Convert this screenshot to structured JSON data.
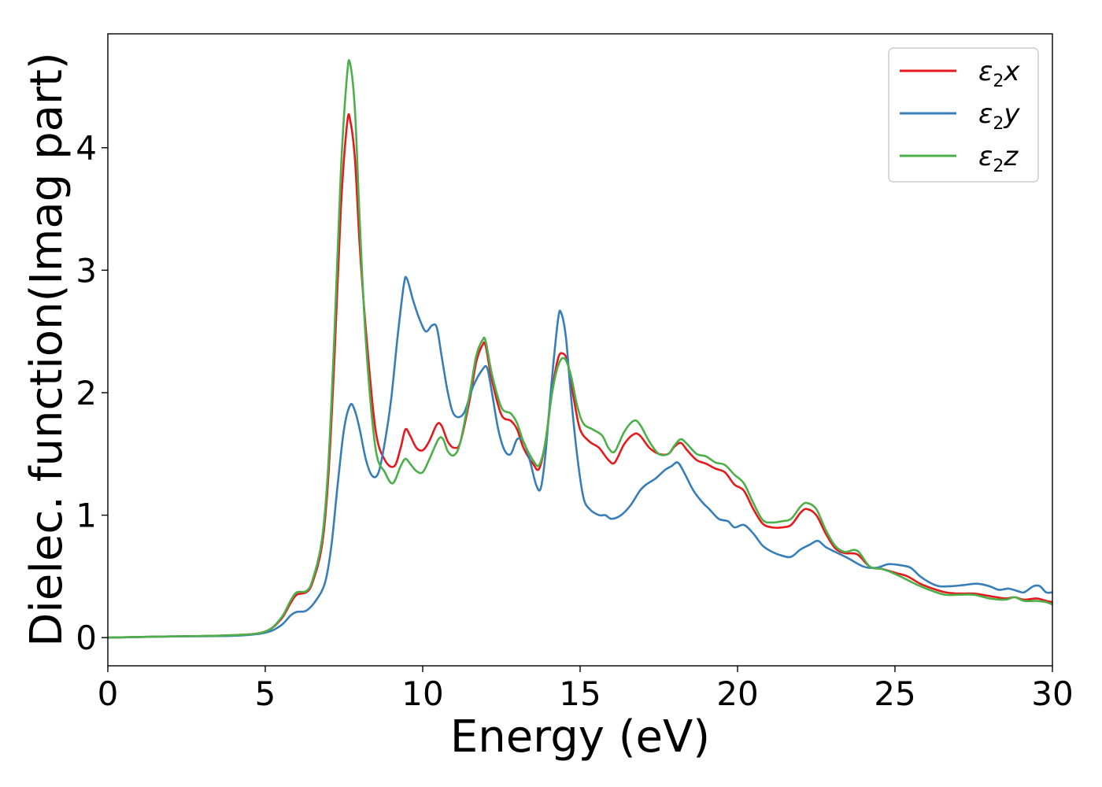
{
  "chart_data": {
    "type": "line",
    "title": "",
    "xlabel": "Energy (eV)",
    "ylabel": "Dielec. function(Imag part)",
    "xlim": [
      0,
      30
    ],
    "ylim": [
      -0.23,
      4.93
    ],
    "x_ticks": [
      0,
      5,
      10,
      15,
      20,
      25,
      30
    ],
    "y_ticks": [
      0,
      1,
      2,
      3,
      4
    ],
    "grid": false,
    "legend_position": "top-right",
    "series": [
      {
        "name": "ε₂x",
        "legend": {
          "base": "ε",
          "sub": "2",
          "var": "x"
        },
        "color": "#e41a1c",
        "points": [
          [
            0,
            0
          ],
          [
            2,
            0.01
          ],
          [
            4,
            0.02
          ],
          [
            5,
            0.05
          ],
          [
            5.5,
            0.15
          ],
          [
            5.8,
            0.28
          ],
          [
            6.0,
            0.35
          ],
          [
            6.3,
            0.37
          ],
          [
            6.5,
            0.45
          ],
          [
            6.8,
            0.75
          ],
          [
            7.0,
            1.3
          ],
          [
            7.2,
            2.3
          ],
          [
            7.4,
            3.5
          ],
          [
            7.6,
            4.2
          ],
          [
            7.7,
            4.22
          ],
          [
            7.85,
            3.9
          ],
          [
            8.0,
            3.2
          ],
          [
            8.2,
            2.5
          ],
          [
            8.5,
            1.7
          ],
          [
            8.8,
            1.45
          ],
          [
            9.1,
            1.4
          ],
          [
            9.3,
            1.55
          ],
          [
            9.45,
            1.7
          ],
          [
            9.6,
            1.65
          ],
          [
            9.8,
            1.55
          ],
          [
            10.0,
            1.53
          ],
          [
            10.2,
            1.6
          ],
          [
            10.45,
            1.74
          ],
          [
            10.6,
            1.73
          ],
          [
            10.8,
            1.6
          ],
          [
            11.0,
            1.55
          ],
          [
            11.2,
            1.6
          ],
          [
            11.5,
            1.95
          ],
          [
            11.7,
            2.25
          ],
          [
            11.9,
            2.39
          ],
          [
            12.0,
            2.38
          ],
          [
            12.2,
            2.1
          ],
          [
            12.5,
            1.82
          ],
          [
            12.8,
            1.77
          ],
          [
            13.0,
            1.7
          ],
          [
            13.2,
            1.55
          ],
          [
            13.5,
            1.42
          ],
          [
            13.7,
            1.38
          ],
          [
            13.9,
            1.6
          ],
          [
            14.1,
            2.0
          ],
          [
            14.3,
            2.28
          ],
          [
            14.45,
            2.32
          ],
          [
            14.6,
            2.25
          ],
          [
            14.8,
            1.95
          ],
          [
            15.0,
            1.7
          ],
          [
            15.3,
            1.6
          ],
          [
            15.6,
            1.55
          ],
          [
            15.9,
            1.45
          ],
          [
            16.1,
            1.43
          ],
          [
            16.4,
            1.58
          ],
          [
            16.7,
            1.66
          ],
          [
            16.9,
            1.65
          ],
          [
            17.2,
            1.55
          ],
          [
            17.5,
            1.5
          ],
          [
            17.8,
            1.5
          ],
          [
            18.0,
            1.56
          ],
          [
            18.2,
            1.59
          ],
          [
            18.4,
            1.53
          ],
          [
            18.7,
            1.45
          ],
          [
            19.0,
            1.42
          ],
          [
            19.3,
            1.38
          ],
          [
            19.6,
            1.35
          ],
          [
            19.9,
            1.25
          ],
          [
            20.2,
            1.2
          ],
          [
            20.5,
            1.05
          ],
          [
            20.8,
            0.93
          ],
          [
            21.1,
            0.9
          ],
          [
            21.4,
            0.9
          ],
          [
            21.7,
            0.92
          ],
          [
            22.0,
            1.02
          ],
          [
            22.2,
            1.05
          ],
          [
            22.5,
            1.0
          ],
          [
            22.8,
            0.85
          ],
          [
            23.1,
            0.73
          ],
          [
            23.4,
            0.69
          ],
          [
            23.8,
            0.68
          ],
          [
            24.2,
            0.58
          ],
          [
            24.6,
            0.56
          ],
          [
            25.0,
            0.53
          ],
          [
            25.4,
            0.5
          ],
          [
            25.8,
            0.44
          ],
          [
            26.2,
            0.4
          ],
          [
            26.6,
            0.37
          ],
          [
            27.0,
            0.36
          ],
          [
            27.5,
            0.36
          ],
          [
            28.0,
            0.34
          ],
          [
            28.5,
            0.32
          ],
          [
            28.8,
            0.33
          ],
          [
            29.1,
            0.31
          ],
          [
            29.5,
            0.32
          ],
          [
            29.8,
            0.3
          ],
          [
            30,
            0.29
          ]
        ]
      },
      {
        "name": "ε₂y",
        "legend": {
          "base": "ε",
          "sub": "2",
          "var": "y"
        },
        "color": "#377eb8",
        "points": [
          [
            0,
            0
          ],
          [
            2,
            0.01
          ],
          [
            4,
            0.015
          ],
          [
            5,
            0.04
          ],
          [
            5.5,
            0.1
          ],
          [
            5.8,
            0.18
          ],
          [
            6.0,
            0.21
          ],
          [
            6.3,
            0.22
          ],
          [
            6.6,
            0.3
          ],
          [
            6.9,
            0.45
          ],
          [
            7.1,
            0.75
          ],
          [
            7.3,
            1.25
          ],
          [
            7.5,
            1.7
          ],
          [
            7.7,
            1.9
          ],
          [
            7.85,
            1.85
          ],
          [
            8.0,
            1.7
          ],
          [
            8.2,
            1.45
          ],
          [
            8.4,
            1.32
          ],
          [
            8.6,
            1.35
          ],
          [
            8.8,
            1.6
          ],
          [
            9.0,
            1.95
          ],
          [
            9.2,
            2.45
          ],
          [
            9.4,
            2.88
          ],
          [
            9.5,
            2.93
          ],
          [
            9.7,
            2.75
          ],
          [
            9.9,
            2.6
          ],
          [
            10.1,
            2.5
          ],
          [
            10.3,
            2.55
          ],
          [
            10.45,
            2.53
          ],
          [
            10.6,
            2.3
          ],
          [
            10.8,
            2.0
          ],
          [
            11.0,
            1.82
          ],
          [
            11.3,
            1.83
          ],
          [
            11.6,
            2.05
          ],
          [
            11.9,
            2.19
          ],
          [
            12.05,
            2.2
          ],
          [
            12.2,
            2.0
          ],
          [
            12.4,
            1.7
          ],
          [
            12.6,
            1.53
          ],
          [
            12.8,
            1.5
          ],
          [
            13.0,
            1.62
          ],
          [
            13.2,
            1.6
          ],
          [
            13.4,
            1.45
          ],
          [
            13.6,
            1.25
          ],
          [
            13.75,
            1.22
          ],
          [
            13.9,
            1.5
          ],
          [
            14.1,
            2.1
          ],
          [
            14.3,
            2.6
          ],
          [
            14.4,
            2.65
          ],
          [
            14.55,
            2.45
          ],
          [
            14.7,
            2.0
          ],
          [
            14.9,
            1.5
          ],
          [
            15.1,
            1.15
          ],
          [
            15.3,
            1.05
          ],
          [
            15.6,
            1.0
          ],
          [
            15.8,
            1.0
          ],
          [
            16.0,
            0.97
          ],
          [
            16.3,
            1.0
          ],
          [
            16.6,
            1.08
          ],
          [
            16.9,
            1.2
          ],
          [
            17.1,
            1.25
          ],
          [
            17.4,
            1.3
          ],
          [
            17.7,
            1.37
          ],
          [
            17.9,
            1.4
          ],
          [
            18.1,
            1.43
          ],
          [
            18.3,
            1.35
          ],
          [
            18.6,
            1.2
          ],
          [
            18.9,
            1.1
          ],
          [
            19.1,
            1.05
          ],
          [
            19.4,
            0.97
          ],
          [
            19.7,
            0.95
          ],
          [
            19.9,
            0.9
          ],
          [
            20.2,
            0.92
          ],
          [
            20.5,
            0.85
          ],
          [
            20.8,
            0.75
          ],
          [
            21.1,
            0.7
          ],
          [
            21.4,
            0.67
          ],
          [
            21.7,
            0.66
          ],
          [
            22.0,
            0.72
          ],
          [
            22.3,
            0.76
          ],
          [
            22.55,
            0.79
          ],
          [
            22.8,
            0.74
          ],
          [
            23.1,
            0.7
          ],
          [
            23.5,
            0.65
          ],
          [
            24.0,
            0.58
          ],
          [
            24.4,
            0.57
          ],
          [
            24.8,
            0.6
          ],
          [
            25.2,
            0.59
          ],
          [
            25.5,
            0.57
          ],
          [
            25.8,
            0.5
          ],
          [
            26.1,
            0.45
          ],
          [
            26.4,
            0.42
          ],
          [
            26.8,
            0.42
          ],
          [
            27.2,
            0.43
          ],
          [
            27.6,
            0.44
          ],
          [
            28.0,
            0.42
          ],
          [
            28.3,
            0.39
          ],
          [
            28.6,
            0.4
          ],
          [
            28.9,
            0.38
          ],
          [
            29.1,
            0.37
          ],
          [
            29.4,
            0.42
          ],
          [
            29.6,
            0.42
          ],
          [
            29.8,
            0.37
          ],
          [
            30,
            0.37
          ]
        ]
      },
      {
        "name": "ε₂z",
        "legend": {
          "base": "ε",
          "sub": "2",
          "var": "z"
        },
        "color": "#4daf4a",
        "points": [
          [
            0,
            0
          ],
          [
            2,
            0.01
          ],
          [
            4,
            0.02
          ],
          [
            5,
            0.05
          ],
          [
            5.5,
            0.16
          ],
          [
            5.8,
            0.3
          ],
          [
            6.0,
            0.37
          ],
          [
            6.3,
            0.38
          ],
          [
            6.5,
            0.47
          ],
          [
            6.8,
            0.8
          ],
          [
            7.0,
            1.4
          ],
          [
            7.2,
            2.5
          ],
          [
            7.4,
            3.8
          ],
          [
            7.6,
            4.6
          ],
          [
            7.7,
            4.68
          ],
          [
            7.85,
            4.3
          ],
          [
            8.0,
            3.4
          ],
          [
            8.2,
            2.4
          ],
          [
            8.5,
            1.55
          ],
          [
            8.8,
            1.35
          ],
          [
            9.05,
            1.26
          ],
          [
            9.3,
            1.4
          ],
          [
            9.45,
            1.46
          ],
          [
            9.6,
            1.42
          ],
          [
            9.8,
            1.36
          ],
          [
            10.0,
            1.35
          ],
          [
            10.2,
            1.45
          ],
          [
            10.5,
            1.62
          ],
          [
            10.65,
            1.62
          ],
          [
            10.8,
            1.52
          ],
          [
            11.0,
            1.49
          ],
          [
            11.2,
            1.6
          ],
          [
            11.5,
            2.0
          ],
          [
            11.7,
            2.3
          ],
          [
            11.9,
            2.43
          ],
          [
            12.0,
            2.42
          ],
          [
            12.2,
            2.15
          ],
          [
            12.5,
            1.88
          ],
          [
            12.8,
            1.83
          ],
          [
            13.0,
            1.75
          ],
          [
            13.2,
            1.6
          ],
          [
            13.5,
            1.45
          ],
          [
            13.7,
            1.41
          ],
          [
            13.9,
            1.6
          ],
          [
            14.1,
            1.98
          ],
          [
            14.3,
            2.22
          ],
          [
            14.5,
            2.28
          ],
          [
            14.7,
            2.15
          ],
          [
            14.9,
            1.9
          ],
          [
            15.1,
            1.75
          ],
          [
            15.4,
            1.7
          ],
          [
            15.7,
            1.65
          ],
          [
            15.9,
            1.55
          ],
          [
            16.1,
            1.52
          ],
          [
            16.4,
            1.68
          ],
          [
            16.7,
            1.77
          ],
          [
            16.9,
            1.74
          ],
          [
            17.2,
            1.6
          ],
          [
            17.5,
            1.5
          ],
          [
            17.8,
            1.5
          ],
          [
            18.0,
            1.57
          ],
          [
            18.2,
            1.62
          ],
          [
            18.4,
            1.58
          ],
          [
            18.7,
            1.5
          ],
          [
            19.0,
            1.48
          ],
          [
            19.3,
            1.43
          ],
          [
            19.6,
            1.41
          ],
          [
            19.9,
            1.33
          ],
          [
            20.2,
            1.26
          ],
          [
            20.5,
            1.1
          ],
          [
            20.8,
            0.96
          ],
          [
            21.1,
            0.94
          ],
          [
            21.4,
            0.95
          ],
          [
            21.7,
            0.97
          ],
          [
            22.0,
            1.07
          ],
          [
            22.2,
            1.1
          ],
          [
            22.5,
            1.05
          ],
          [
            22.8,
            0.88
          ],
          [
            23.1,
            0.75
          ],
          [
            23.4,
            0.7
          ],
          [
            23.8,
            0.71
          ],
          [
            24.2,
            0.58
          ],
          [
            24.6,
            0.56
          ],
          [
            25.0,
            0.52
          ],
          [
            25.4,
            0.47
          ],
          [
            25.8,
            0.42
          ],
          [
            26.2,
            0.38
          ],
          [
            26.6,
            0.35
          ],
          [
            27.0,
            0.35
          ],
          [
            27.5,
            0.35
          ],
          [
            28.0,
            0.32
          ],
          [
            28.5,
            0.31
          ],
          [
            28.8,
            0.33
          ],
          [
            29.1,
            0.3
          ],
          [
            29.5,
            0.3
          ],
          [
            29.8,
            0.29
          ],
          [
            30,
            0.27
          ]
        ]
      }
    ]
  }
}
